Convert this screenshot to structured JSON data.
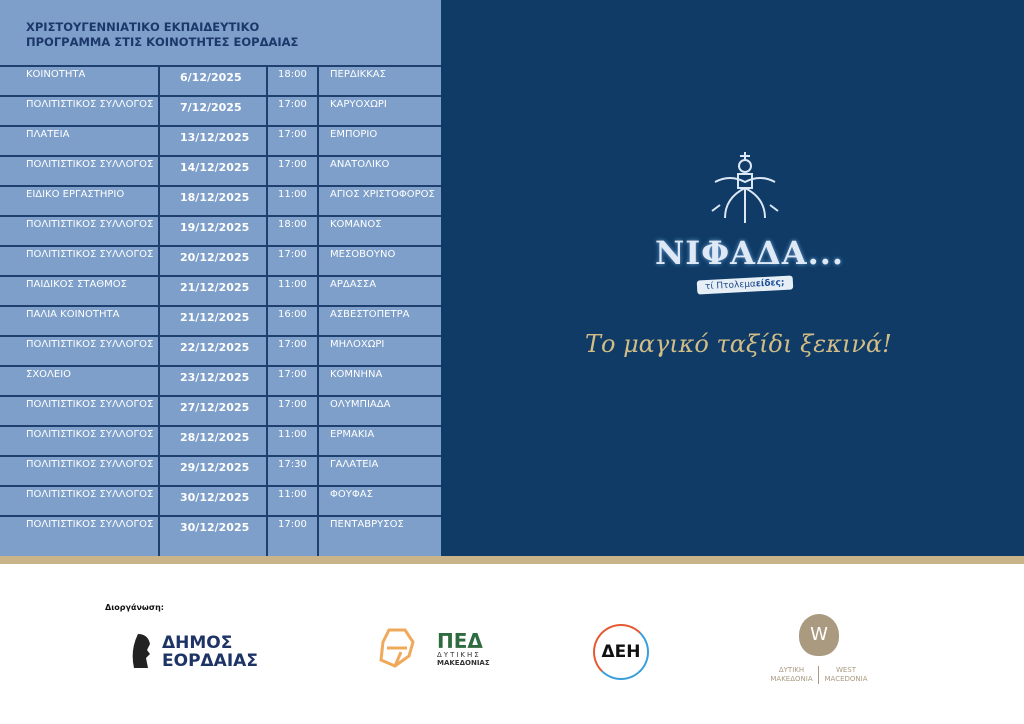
{
  "title": [
    "ΧΡΙΣΤΟΥΓΕΝΝΙΑΤΙΚΟ ΕΚΠΑΙΔΕΥΤΙΚΟ",
    "ΠΡΟΓΡΑΜΜΑ ΣΤΙΣ ΚΟΙΝΟΤΗΤΕΣ ΕΟΡΔΑΙΑΣ"
  ],
  "schedule": [
    [
      "ΚΟΙΝΟΤΗΤΑ",
      "6/12/2025",
      "18:00",
      "ΠΕΡΔΙΚΚΑΣ"
    ],
    [
      "ΠΟΛΙΤΙΣΤΙΚΟΣ ΣΥΛΛΟΓΟΣ",
      "7/12/2025",
      "17:00",
      "ΚΑΡΥΟΧΩΡΙ"
    ],
    [
      "ΠΛΑΤΕΙΑ",
      "13/12/2025",
      "17:00",
      "ΕΜΠΟΡΙΟ"
    ],
    [
      "ΠΟΛΙΤΙΣΤΙΚΟΣ ΣΥΛΛΟΓΟΣ",
      "14/12/2025",
      "17:00",
      "ΑΝΑΤΟΛΙΚΟ"
    ],
    [
      "ΕΙΔΙΚΟ ΕΡΓΑΣΤΗΡΙΟ",
      "18/12/2025",
      "11:00",
      "ΑΓΙΟΣ ΧΡΙΣΤΟΦΟΡΟΣ"
    ],
    [
      "ΠΟΛΙΤΙΣΤΙΚΟΣ ΣΥΛΛΟΓΟΣ",
      "19/12/2025",
      "18:00",
      "ΚΟΜΑΝΟΣ"
    ],
    [
      "ΠΟΛΙΤΙΣΤΙΚΟΣ ΣΥΛΛΟΓΟΣ",
      "20/12/2025",
      "17:00",
      "ΜΕΣΟΒΟΥΝΟ"
    ],
    [
      "ΠΑΙΔΙΚΟΣ ΣΤΑΘΜΟΣ",
      "21/12/2025",
      "11:00",
      "ΑΡΔΑΣΣΑ"
    ],
    [
      "ΠΑΛΙΑ ΚΟΙΝΟΤΗΤΑ",
      "21/12/2025",
      "16:00",
      "ΑΣΒΕΣΤΟΠΕΤΡΑ"
    ],
    [
      "ΠΟΛΙΤΙΣΤΙΚΟΣ ΣΥΛΛΟΓΟΣ",
      "22/12/2025",
      "17:00",
      "ΜΗΛΟΧΩΡΙ"
    ],
    [
      "ΣΧΟΛΕΙΟ",
      "23/12/2025",
      "17:00",
      "ΚΟΜΝΗΝΑ"
    ],
    [
      "ΠΟΛΙΤΙΣΤΙΚΟΣ ΣΥΛΛΟΓΟΣ",
      "27/12/2025",
      "17:00",
      "ΟΛΥΜΠΙΑΔΑ"
    ],
    [
      "ΠΟΛΙΤΙΣΤΙΚΟΣ ΣΥΛΛΟΓΟΣ",
      "28/12/2025",
      "11:00",
      "ΕΡΜΑΚΙΑ"
    ],
    [
      "ΠΟΛΙΤΙΣΤΙΚΟΣ ΣΥΛΛΟΓΟΣ",
      "29/12/2025",
      "17:30",
      "ΓΑΛΑΤΕΙΑ"
    ],
    [
      "ΠΟΛΙΤΙΣΤΙΚΟΣ ΣΥΛΛΟΓΟΣ",
      "30/12/2025",
      "11:00",
      "ΦΟΥΦΑΣ"
    ],
    [
      "ΠΟΛΙΤΙΣΤΙΚΟΣ ΣΥΛΛΟΓΟΣ",
      "30/12/2025",
      "17:00",
      "ΠΕΝΤΑΒΡΥΣΟΣ"
    ]
  ],
  "brand": {
    "name": "ΝΙΦΑΔΑ...",
    "tag_a": "τί Πτολεμα",
    "tag_b": "είδες;",
    "slogan": "Το μαγικό ταξίδι ξεκινά!"
  },
  "organizer_label": "Διοργάνωση:",
  "sponsors": {
    "dimos": [
      "ΔΗΜΟΣ",
      "ΕΟΡΔΑΙΑΣ"
    ],
    "ped": [
      "ΠΕΔ",
      "ΔΥΤΙΚΗΣ",
      "ΜΑΚΕΔΟΝΙΑΣ"
    ],
    "deh": "ΔΕΗ",
    "wm": [
      "ΔΥΤΙΚΗ ΜΑΚΕΔΟΝΙΑ",
      "WEST MACEDONIA"
    ]
  },
  "colors": {
    "left_bg": "#7d9fc9",
    "right_bg": "#0f3b66",
    "gold": "#c8b488"
  }
}
